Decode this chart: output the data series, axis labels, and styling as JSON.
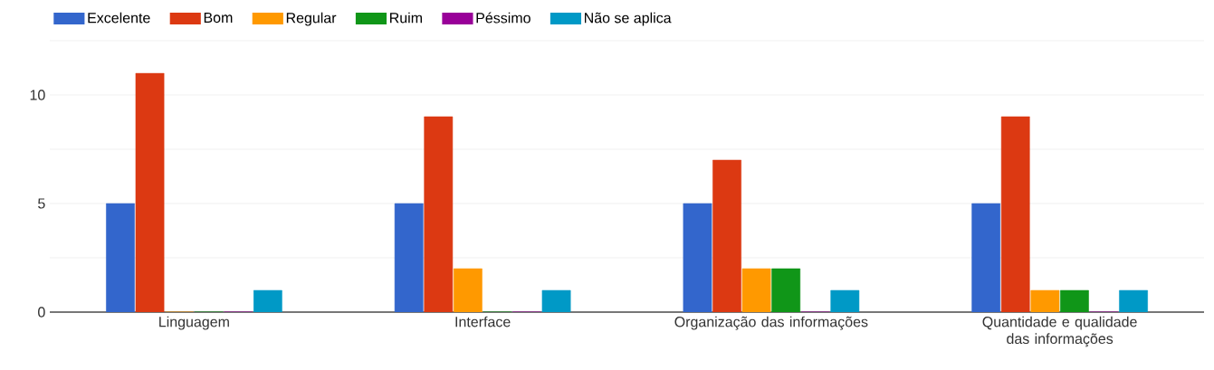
{
  "chart_data": {
    "type": "bar",
    "categories": [
      "Linguagem",
      "Interface",
      "Organização das informações",
      "Quantidade e qualidade das informações"
    ],
    "series": [
      {
        "name": "Excelente",
        "color": "#3366cc",
        "values": [
          5,
          5,
          5,
          5
        ]
      },
      {
        "name": "Bom",
        "color": "#dc3912",
        "values": [
          11,
          9,
          7,
          9
        ]
      },
      {
        "name": "Regular",
        "color": "#ff9900",
        "values": [
          0,
          2,
          2,
          1
        ]
      },
      {
        "name": "Ruim",
        "color": "#109618",
        "values": [
          0,
          0,
          2,
          1
        ]
      },
      {
        "name": "Péssimo",
        "color": "#990099",
        "values": [
          0,
          0,
          0,
          0
        ]
      },
      {
        "name": "Não se aplica",
        "color": "#0099c6",
        "values": [
          1,
          1,
          1,
          1
        ]
      }
    ],
    "ylim": [
      0,
      12.5
    ],
    "yticks": [
      0,
      {
        "value": 2.5,
        "label": null
      },
      5,
      {
        "value": 7.5,
        "label": null
      },
      10,
      {
        "value": 12.5,
        "label": null
      }
    ],
    "grid": "y",
    "legend": "top left"
  }
}
